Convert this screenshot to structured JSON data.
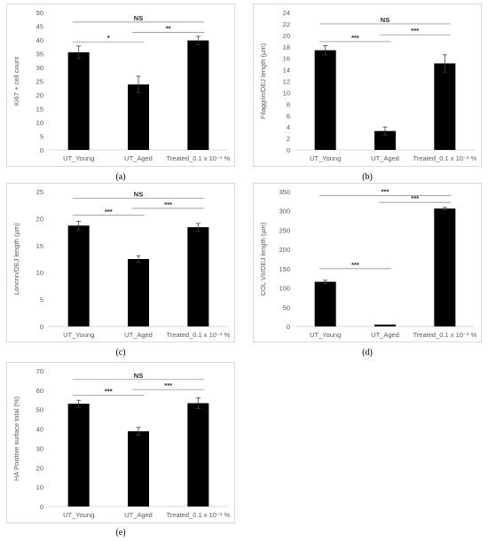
{
  "chart_data": [
    {
      "type": "bar",
      "panel_label": "(a)",
      "categories": [
        "UT_Young",
        "UT_Aged",
        "Treated_0.1 x 10⁻³ %"
      ],
      "values": [
        35.5,
        23.8,
        39.8
      ],
      "errors": [
        2.3,
        3.0,
        1.5
      ],
      "ylabel": "Ki67 + cell count",
      "ylim": [
        0,
        50
      ],
      "yticks": [
        "0",
        "5",
        "10",
        "15",
        "20",
        "25",
        "30",
        "35",
        "40",
        "45",
        "50"
      ],
      "color": "#000000",
      "significance": [
        {
          "from": 0,
          "to": 2,
          "label": "NS",
          "y": 46.5
        },
        {
          "from": 0,
          "to": 1,
          "label": "*",
          "y": 39.3
        },
        {
          "from": 1,
          "to": 2,
          "label": "**",
          "y": 42.7
        }
      ]
    },
    {
      "type": "bar",
      "panel_label": "(b)",
      "categories": [
        "UT_Young",
        "UT_Aged",
        "Treated_0.1 x 10⁻³ %"
      ],
      "values": [
        17.4,
        3.3,
        15.1
      ],
      "errors": [
        0.8,
        0.7,
        1.5
      ],
      "ylabel": "Filaggrin/DEJ length (µm)",
      "ylim": [
        0,
        24
      ],
      "yticks": [
        "0",
        "2",
        "4",
        "6",
        "8",
        "10",
        "12",
        "14",
        "16",
        "18",
        "20",
        "22",
        "24"
      ],
      "color": "#000000",
      "significance": [
        {
          "from": 0,
          "to": 2,
          "label": "NS",
          "y": 22.0
        },
        {
          "from": 0,
          "to": 1,
          "label": "***",
          "y": 18.9
        },
        {
          "from": 1,
          "to": 2,
          "label": "***",
          "y": 20.1
        }
      ]
    },
    {
      "type": "bar",
      "panel_label": "(c)",
      "categories": [
        "UT_Young",
        "UT_Aged",
        "Treated_0.1 x 10⁻³ %"
      ],
      "values": [
        18.7,
        12.5,
        18.4
      ],
      "errors": [
        0.8,
        0.6,
        0.7
      ],
      "ylabel": "Loricrin/DEJ length (µm)",
      "ylim": [
        0,
        25
      ],
      "yticks": [
        "0",
        "5",
        "10",
        "15",
        "20",
        "25"
      ],
      "color": "#000000",
      "significance": [
        {
          "from": 0,
          "to": 2,
          "label": "NS",
          "y": 23.8
        },
        {
          "from": 0,
          "to": 1,
          "label": "***",
          "y": 20.6
        },
        {
          "from": 1,
          "to": 2,
          "label": "***",
          "y": 21.9
        }
      ]
    },
    {
      "type": "bar",
      "panel_label": "(d)",
      "categories": [
        "UT_Young",
        "UT_Aged",
        "Treated_0.1 x 10⁻³ %"
      ],
      "values": [
        116,
        5,
        306
      ],
      "errors": [
        4,
        0,
        3
      ],
      "ylabel": "COL VII/DEJ length (µm)",
      "ylim": [
        0,
        350
      ],
      "yticks": [
        "0",
        "50",
        "100",
        "150",
        "200",
        "250",
        "300",
        "350"
      ],
      "color": "#000000",
      "significance": [
        {
          "from": 0,
          "to": 2,
          "label": "***",
          "y": 340
        },
        {
          "from": 0,
          "to": 1,
          "label": "***",
          "y": 150
        },
        {
          "from": 1,
          "to": 2,
          "label": "***",
          "y": 322
        }
      ]
    },
    {
      "type": "bar",
      "panel_label": "(e)",
      "categories": [
        "UT_Young",
        "UT_Aged",
        "Treated_0.1 x 10⁻³ %"
      ],
      "values": [
        53.0,
        38.8,
        53.3
      ],
      "errors": [
        1.8,
        2.0,
        2.8
      ],
      "ylabel": "HA Positive surface total (%)",
      "ylim": [
        0,
        70
      ],
      "yticks": [
        "0",
        "10",
        "20",
        "30",
        "40",
        "50",
        "60",
        "70"
      ],
      "color": "#000000",
      "significance": [
        {
          "from": 0,
          "to": 2,
          "label": "NS",
          "y": 65.5
        },
        {
          "from": 0,
          "to": 1,
          "label": "***",
          "y": 57.4
        },
        {
          "from": 1,
          "to": 2,
          "label": "***",
          "y": 60.3
        }
      ]
    }
  ]
}
